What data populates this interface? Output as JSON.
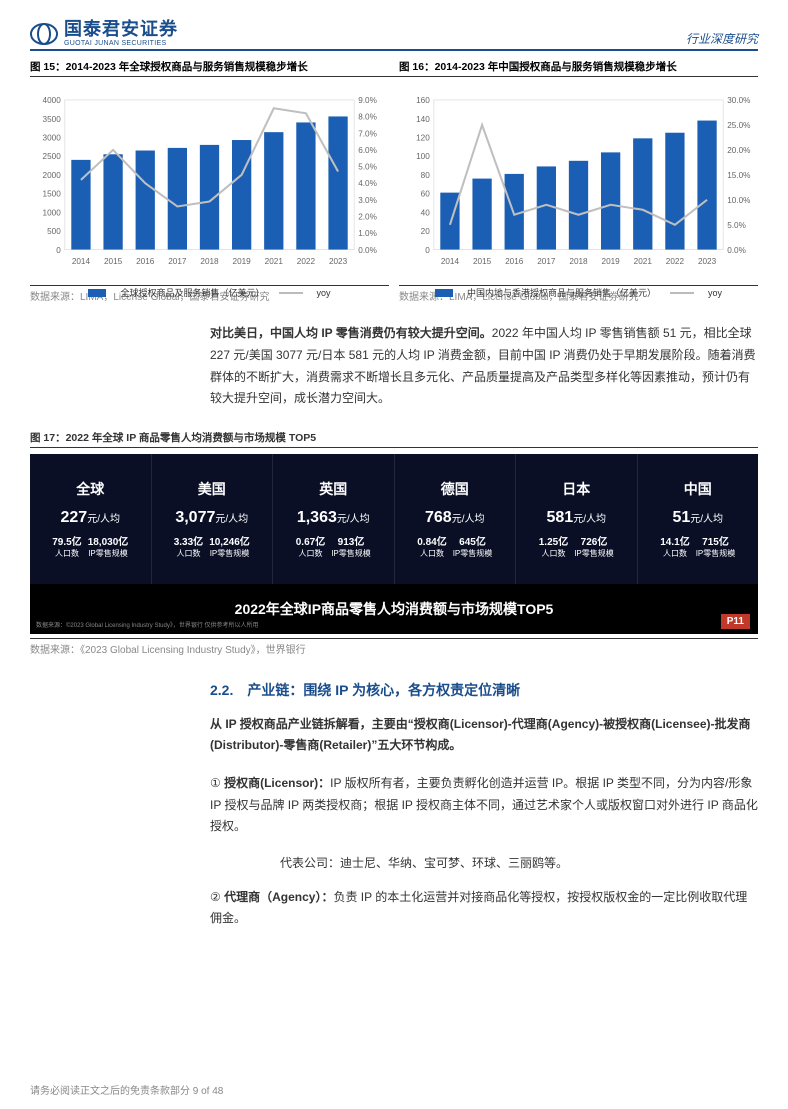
{
  "header": {
    "logo_cn": "国泰君安证券",
    "logo_en": "GUOTAI JUNAN SECURITIES",
    "right": "行业深度研究"
  },
  "fig15": {
    "title": "图 15：2014-2023 年全球授权商品与服务销售规模稳步增长",
    "src": "数据来源：LIMA，License Global，国泰君安证券研究",
    "legend_bar": "全球授权商品及服务销售（亿美元）",
    "legend_line": "yoy",
    "categories": [
      "2014",
      "2015",
      "2016",
      "2017",
      "2018",
      "2019",
      "2021",
      "2022",
      "2023"
    ],
    "bar_values": [
      2400,
      2550,
      2650,
      2720,
      2800,
      2930,
      3140,
      3400,
      3560
    ],
    "line_values": [
      4.2,
      6.0,
      4.0,
      2.6,
      2.9,
      4.5,
      8.5,
      8.2,
      4.7
    ],
    "y_left_max": 4000,
    "y_left_step": 500,
    "y_right_max": 9.0,
    "y_right_step": 1.0,
    "bar_color": "#1a5fb4",
    "line_color": "#bfbfbf",
    "bg": "#ffffff"
  },
  "fig16": {
    "title": "图 16：2014-2023 年中国授权商品与服务销售规模稳步增长",
    "src": "数据来源：LIMA，License Global，国泰君安证券研究",
    "legend_bar": "中国内地与香港授权商品与服务销售（亿美元）",
    "legend_line": "yoy",
    "categories": [
      "2014",
      "2015",
      "2016",
      "2017",
      "2018",
      "2019",
      "2021",
      "2022",
      "2023"
    ],
    "bar_values": [
      61,
      76,
      81,
      89,
      95,
      104,
      119,
      125,
      138
    ],
    "line_values": [
      5,
      25,
      7,
      9,
      7,
      9,
      8,
      5,
      10
    ],
    "y_left_max": 160,
    "y_left_step": 20,
    "y_right_max": 30.0,
    "y_right_step": 5.0,
    "bar_color": "#1a5fb4",
    "line_color": "#bfbfbf",
    "bg": "#ffffff"
  },
  "para1": {
    "bold": "对比美日，中国人均 IP 零售消费仍有较大提升空间。",
    "rest": "2022 年中国人均 IP 零售销售额 51 元，相比全球 227 元/美国 3077 元/日本 581 元的人均 IP 消费金额，目前中国 IP 消费仍处于早期发展阶段。随着消费群体的不断扩大，消费需求不断增长且多元化、产品质量提高及产品类型多样化等因素推动，预计仍有较大提升空间，成长潜力空间大。"
  },
  "fig17": {
    "title": "图 17：2022 年全球 IP 商品零售人均消费额与市场规模 TOP5",
    "band_title": "2022年全球IP商品零售人均消费额与市场规模TOP5",
    "page": "P11",
    "footnote": "数据来源：©2023 Global Licensing Industry Study》，世界银行\n仅供参考所以人所用",
    "src": "数据来源：《2023 Global Licensing Industry Study》，世界银行",
    "unit": "元/人均",
    "pop_label": "人口数",
    "scale_label": "IP零售规模",
    "countries": [
      {
        "name": "全球",
        "val": "227",
        "pop": "79.5亿",
        "scale": "18,030亿"
      },
      {
        "name": "美国",
        "val": "3,077",
        "pop": "3.33亿",
        "scale": "10,246亿"
      },
      {
        "name": "英国",
        "val": "1,363",
        "pop": "0.67亿",
        "scale": "913亿"
      },
      {
        "name": "德国",
        "val": "768",
        "pop": "0.84亿",
        "scale": "645亿"
      },
      {
        "name": "日本",
        "val": "581",
        "pop": "1.25亿",
        "scale": "726亿"
      },
      {
        "name": "中国",
        "val": "51",
        "pop": "14.1亿",
        "scale": "715亿"
      }
    ]
  },
  "section": {
    "heading": "2.2.　产业链：围绕 IP 为核心，各方权责定位清晰",
    "intro_bold": "从 IP 授权商品产业链拆解看，主要由“授权商(Licensor)-代理商(Agency)-被授权商(Licensee)-批发商(Distributor)-零售商(Retailer)”五大环节构成。",
    "item1_num": "①",
    "item1_title": "授权商(Licensor)：",
    "item1_body": "IP 版权所有者，主要负责孵化创造并运营 IP。根据 IP 类型不同，分为内容/形象 IP 授权与品牌 IP 两类授权商；根据 IP 授权商主体不同，通过艺术家个人或版权窗口对外进行 IP 商品化授权。",
    "item1_rep": "代表公司：迪士尼、华纳、宝可梦、环球、三丽鸥等。",
    "item2_num": "②",
    "item2_title": "代理商（Agency）：",
    "item2_body": "负责 IP 的本土化运营并对接商品化等授权，按授权版权金的一定比例收取代理佣金。"
  },
  "footer": "请务必阅读正文之后的免责条款部分 9 of 48"
}
